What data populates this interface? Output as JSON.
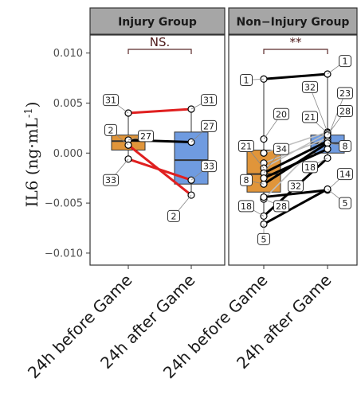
{
  "chart_data": {
    "type": "boxplot-paired",
    "ylabel": "IL6 (ng·mL",
    "ylabel_sup": "-1",
    "ylabel_close": ")",
    "ylim": [
      -0.0112,
      0.0118
    ],
    "yticks": [
      -0.01,
      -0.005,
      0.0,
      0.005,
      0.01
    ],
    "ytick_labels": [
      "−0.010",
      "−0.005",
      "0.000",
      "0.005",
      "0.010"
    ],
    "categories": [
      "24h before Game",
      "24h after Game"
    ],
    "colors": {
      "before": "#E0953A",
      "after": "#6F9BE0",
      "red": "#E02020",
      "black": "#000000",
      "grey": "#BFBFBF",
      "sig": "#5a2a2a"
    },
    "panels": [
      {
        "title": "Injury Group",
        "significance": "NS.",
        "boxes": [
          {
            "category": "24h before Game",
            "q1": 0.0003,
            "median": 0.0012,
            "q3": 0.0018,
            "whisker_low": -0.0006,
            "whisker_high": 0.004
          },
          {
            "category": "24h after Game",
            "q1": -0.0031,
            "median": -0.0007,
            "q3": 0.0021,
            "whisker_low": -0.0042,
            "whisker_high": 0.0044
          }
        ],
        "pairs": [
          {
            "id": "31",
            "before": 0.004,
            "after": 0.0044,
            "line": "red",
            "label_before": [
              0.0053,
              "left"
            ],
            "label_after": [
              0.0053,
              "right"
            ]
          },
          {
            "id": "27",
            "before": 0.0013,
            "after": 0.0011,
            "line": "black",
            "label_before": [
              0.0017,
              "right"
            ],
            "label_after": [
              0.0027,
              "right"
            ]
          },
          {
            "id": "2",
            "before": 0.0008,
            "after": -0.0042,
            "line": "red",
            "label_before": [
              0.0023,
              "left"
            ],
            "label_after": [
              -0.0063,
              "left"
            ]
          },
          {
            "id": "33",
            "before": -0.0006,
            "after": -0.0027,
            "line": "red",
            "label_before": [
              -0.0027,
              "left"
            ],
            "label_after": [
              -0.0013,
              "right"
            ]
          }
        ]
      },
      {
        "title": "Non−Injury Group",
        "significance": "**",
        "boxes": [
          {
            "category": "24h before Game",
            "q1": -0.0039,
            "median": -0.0021,
            "q3": 0.0003,
            "whisker_low": -0.0071,
            "whisker_high": 0.0074
          },
          {
            "category": "24h after Game",
            "q1": 0.0,
            "median": 0.001,
            "q3": 0.0018,
            "whisker_low": -0.0006,
            "whisker_high": 0.0079
          }
        ],
        "pairs": [
          {
            "id": "1",
            "before": 0.0074,
            "after": 0.0079,
            "line": "black",
            "label_before": [
              0.0073,
              "left"
            ],
            "label_after": [
              0.0092,
              "right"
            ]
          },
          {
            "id": "32",
            "before": 0.0,
            "after": 0.0021,
            "line": "grey",
            "label_before": null,
            "label_after": [
              0.0066,
              "left"
            ]
          },
          {
            "id": "23",
            "before": -0.001,
            "after": 0.0015,
            "line": "grey",
            "label_before": null,
            "label_after": [
              0.006,
              "right"
            ]
          },
          {
            "id": "20",
            "before": 0.0014,
            "after": 0.0015,
            "line": "none",
            "label_before": [
              0.0039,
              "right"
            ],
            "label_after": null
          },
          {
            "id": "21",
            "before": -0.0015,
            "after": 0.002,
            "line": "grey",
            "label_before": [
              0.0007,
              "left"
            ],
            "label_after": [
              0.0036,
              "left"
            ]
          },
          {
            "id": "28",
            "before": -0.0046,
            "after": 0.0018,
            "line": "grey",
            "label_before": [
              -0.0053,
              "right"
            ],
            "label_after": [
              0.0042,
              "right"
            ]
          },
          {
            "id": "34",
            "before": -0.002,
            "after": 0.0012,
            "line": "black",
            "label_before": [
              0.0004,
              "right"
            ],
            "label_after": null
          },
          {
            "id": "8",
            "before": -0.0031,
            "after": 0.001,
            "line": "black",
            "label_before": [
              -0.0027,
              "left"
            ],
            "label_after": [
              0.0007,
              "right"
            ]
          },
          {
            "id": "18",
            "before": -0.0063,
            "after": -0.0005,
            "line": "black",
            "label_before": [
              -0.0053,
              "left"
            ],
            "label_after": [
              -0.0014,
              "left"
            ]
          },
          {
            "id": "14",
            "before": -0.0044,
            "after": -0.0037,
            "line": "black",
            "label_before": null,
            "label_after": [
              -0.0021,
              "right"
            ]
          },
          {
            "id": "5",
            "before": -0.0071,
            "after": -0.0036,
            "line": "black",
            "label_before": [
              -0.0086,
              "center"
            ],
            "label_after": [
              -0.005,
              "right"
            ]
          },
          {
            "id": "33b",
            "before": -0.0025,
            "after": 0.0004,
            "line": "black",
            "label_before": null,
            "label_after": null
          }
        ]
      }
    ],
    "extra_labels": [
      {
        "panel": 1,
        "text": "32",
        "y": -0.0033,
        "x_anchor": "between"
      }
    ]
  }
}
